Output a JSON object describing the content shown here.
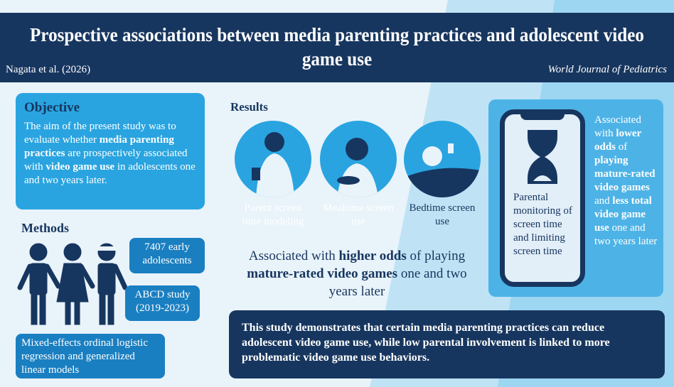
{
  "header": {
    "title": "Prospective associations between media parenting practices and adolescent video game use",
    "authors": "Nagata et al. (2026)",
    "journal": "World Journal of Pediatrics"
  },
  "objective": {
    "heading": "Objective",
    "segments": [
      {
        "text": "The aim of the present study was to evaluate whether ",
        "bold": false
      },
      {
        "text": "media parenting practices",
        "bold": true
      },
      {
        "text": " are prospectively associated with ",
        "bold": false
      },
      {
        "text": "video game use",
        "bold": true
      },
      {
        "text": " in adolescents one and two years later.",
        "bold": false
      }
    ]
  },
  "methods": {
    "heading": "Methods",
    "callouts": [
      "7407 early adolescents",
      "ABCD study (2019-2023)",
      "Mixed-effects ordinal logistic regression and generalized linear models"
    ]
  },
  "results": {
    "heading": "Results",
    "items": [
      {
        "label": "Parent screen time modeling",
        "icon": "parent-phone-icon"
      },
      {
        "label": "Mealtime screen use",
        "icon": "mealtime-phone-icon"
      },
      {
        "label": "Bedtime screen use",
        "icon": "bedtime-phone-icon"
      }
    ],
    "association": [
      {
        "text": "Associated with ",
        "bold": false
      },
      {
        "text": "higher odds",
        "bold": true
      },
      {
        "text": " of playing ",
        "bold": false
      },
      {
        "text": "mature-rated video games",
        "bold": true
      },
      {
        "text": " one and two years later",
        "bold": false
      }
    ]
  },
  "monitoring": {
    "phone_text": "Parental monitoring of screen time and limiting screen time",
    "icon": "hourglass-icon",
    "segments": [
      {
        "text": "Associated with ",
        "bold": false
      },
      {
        "text": "lower odds",
        "bold": true
      },
      {
        "text": " of ",
        "bold": false
      },
      {
        "text": "playing mature-rated video games",
        "bold": true
      },
      {
        "text": " and ",
        "bold": false
      },
      {
        "text": "less total video game use",
        "bold": true
      },
      {
        "text": " one and two years later",
        "bold": false
      }
    ]
  },
  "conclusion": "This study demonstrates that certain media parenting practices can reduce adolescent video game use, while low parental involvement is linked to more problematic video game use behaviors.",
  "colors": {
    "navy": "#17365f",
    "blue": "#29a4e0",
    "light_blue": "#4db3e6",
    "callout": "#1a7fc1"
  }
}
